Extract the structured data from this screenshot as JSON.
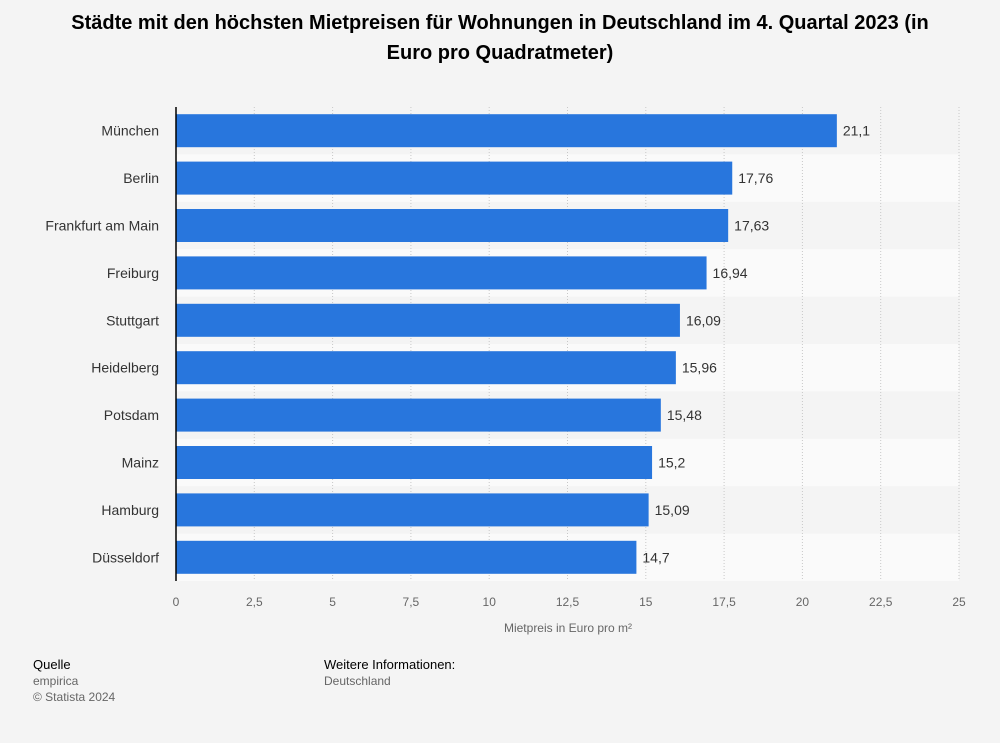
{
  "title": "Städte mit den höchsten Mietpreisen für Wohnungen in Deutschland im 4. Quartal 2023 (in Euro pro Quadratmeter)",
  "chart_data": {
    "type": "bar",
    "orientation": "horizontal",
    "title": "Städte mit den höchsten Mietpreisen für Wohnungen in Deutschland im 4. Quartal 2023 (in Euro pro Quadratmeter)",
    "xlabel": "Mietpreis in Euro pro m²",
    "ylabel": "",
    "xlim": [
      0,
      25
    ],
    "ticks": [
      "0",
      "2,5",
      "5",
      "7,5",
      "10",
      "12,5",
      "15",
      "17,5",
      "20",
      "22,5",
      "25"
    ],
    "tick_values": [
      0,
      2.5,
      5,
      7.5,
      10,
      12.5,
      15,
      17.5,
      20,
      22.5,
      25
    ],
    "categories": [
      "München",
      "Berlin",
      "Frankfurt am Main",
      "Freiburg",
      "Stuttgart",
      "Heidelberg",
      "Potsdam",
      "Mainz",
      "Hamburg",
      "Düsseldorf"
    ],
    "values": [
      21.1,
      17.76,
      17.63,
      16.94,
      16.09,
      15.96,
      15.48,
      15.2,
      15.09,
      14.7
    ],
    "value_labels": [
      "21,1",
      "17,76",
      "17,63",
      "16,94",
      "16,09",
      "15,96",
      "15,48",
      "15,2",
      "15,09",
      "14,7"
    ],
    "bar_color": "#2876dd",
    "grid": true
  },
  "footer": {
    "source_heading": "Quelle",
    "source": "empirica",
    "copyright": "© Statista 2024",
    "info_heading": "Weitere Informationen:",
    "info": "Deutschland"
  }
}
